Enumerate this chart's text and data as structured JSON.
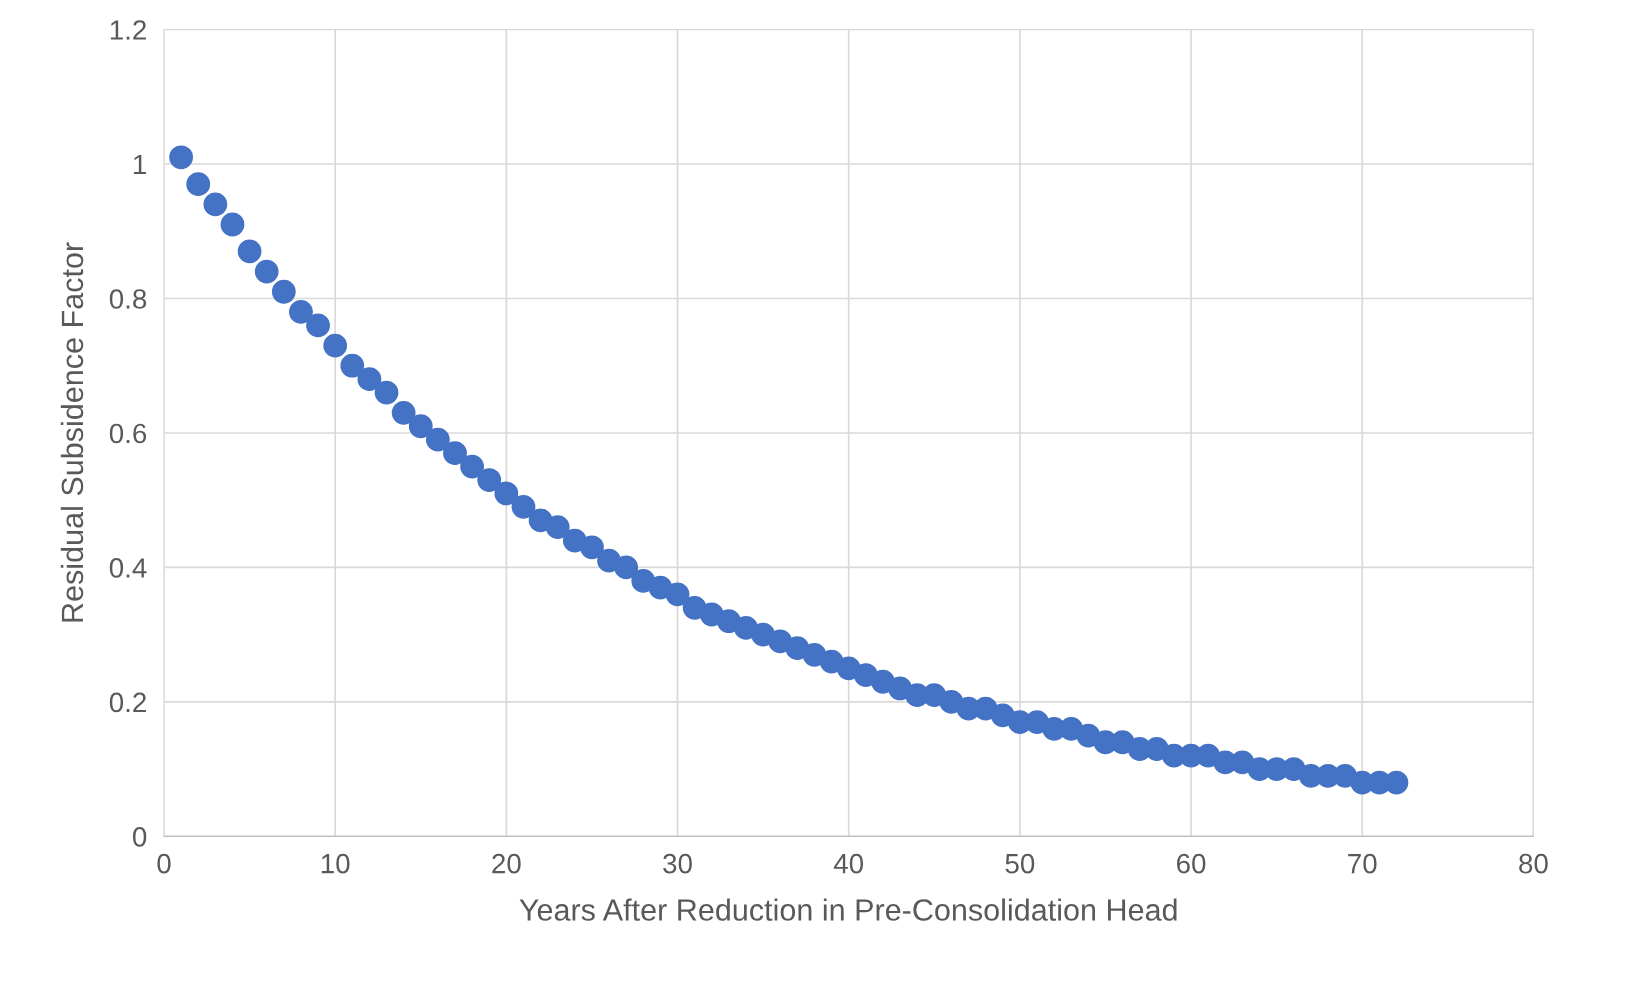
{
  "chart_data": {
    "type": "scatter",
    "xlabel": "Years After Reduction in Pre-Consolidation Head",
    "ylabel": "Residual Subsidence Factor",
    "x": [
      1,
      2,
      3,
      4,
      5,
      6,
      7,
      8,
      9,
      10,
      11,
      12,
      13,
      14,
      15,
      16,
      17,
      18,
      19,
      20,
      21,
      22,
      23,
      24,
      25,
      26,
      27,
      28,
      29,
      30,
      31,
      32,
      33,
      34,
      35,
      36,
      37,
      38,
      39,
      40,
      41,
      42,
      43,
      44,
      45,
      46,
      47,
      48,
      49,
      50,
      51,
      52,
      53,
      54,
      55,
      56,
      57,
      58,
      59,
      60,
      61,
      62,
      63,
      64,
      65,
      66,
      67,
      68,
      69,
      70,
      71,
      72
    ],
    "series": [
      {
        "color": "#4472c4",
        "values": [
          1.01,
          0.97,
          0.94,
          0.91,
          0.87,
          0.84,
          0.81,
          0.78,
          0.76,
          0.73,
          0.7,
          0.68,
          0.66,
          0.63,
          0.61,
          0.59,
          0.57,
          0.55,
          0.53,
          0.51,
          0.49,
          0.47,
          0.46,
          0.44,
          0.43,
          0.41,
          0.4,
          0.38,
          0.37,
          0.36,
          0.34,
          0.33,
          0.32,
          0.31,
          0.3,
          0.29,
          0.28,
          0.27,
          0.26,
          0.25,
          0.24,
          0.23,
          0.22,
          0.21,
          0.21,
          0.2,
          0.19,
          0.19,
          0.18,
          0.17,
          0.17,
          0.16,
          0.16,
          0.15,
          0.14,
          0.14,
          0.13,
          0.13,
          0.12,
          0.12,
          0.12,
          0.11,
          0.11,
          0.1,
          0.1,
          0.1,
          0.09,
          0.09,
          0.09,
          0.08,
          0.08,
          0.08
        ]
      }
    ],
    "xlim": [
      0,
      80
    ],
    "xticks": [
      0,
      10,
      20,
      30,
      40,
      50,
      60,
      70,
      80
    ],
    "ylim": [
      0,
      1.2
    ],
    "yticks": [
      0,
      0.2,
      0.4,
      0.6,
      0.8,
      1,
      1.2
    ],
    "grid": true,
    "marker": "circle"
  }
}
